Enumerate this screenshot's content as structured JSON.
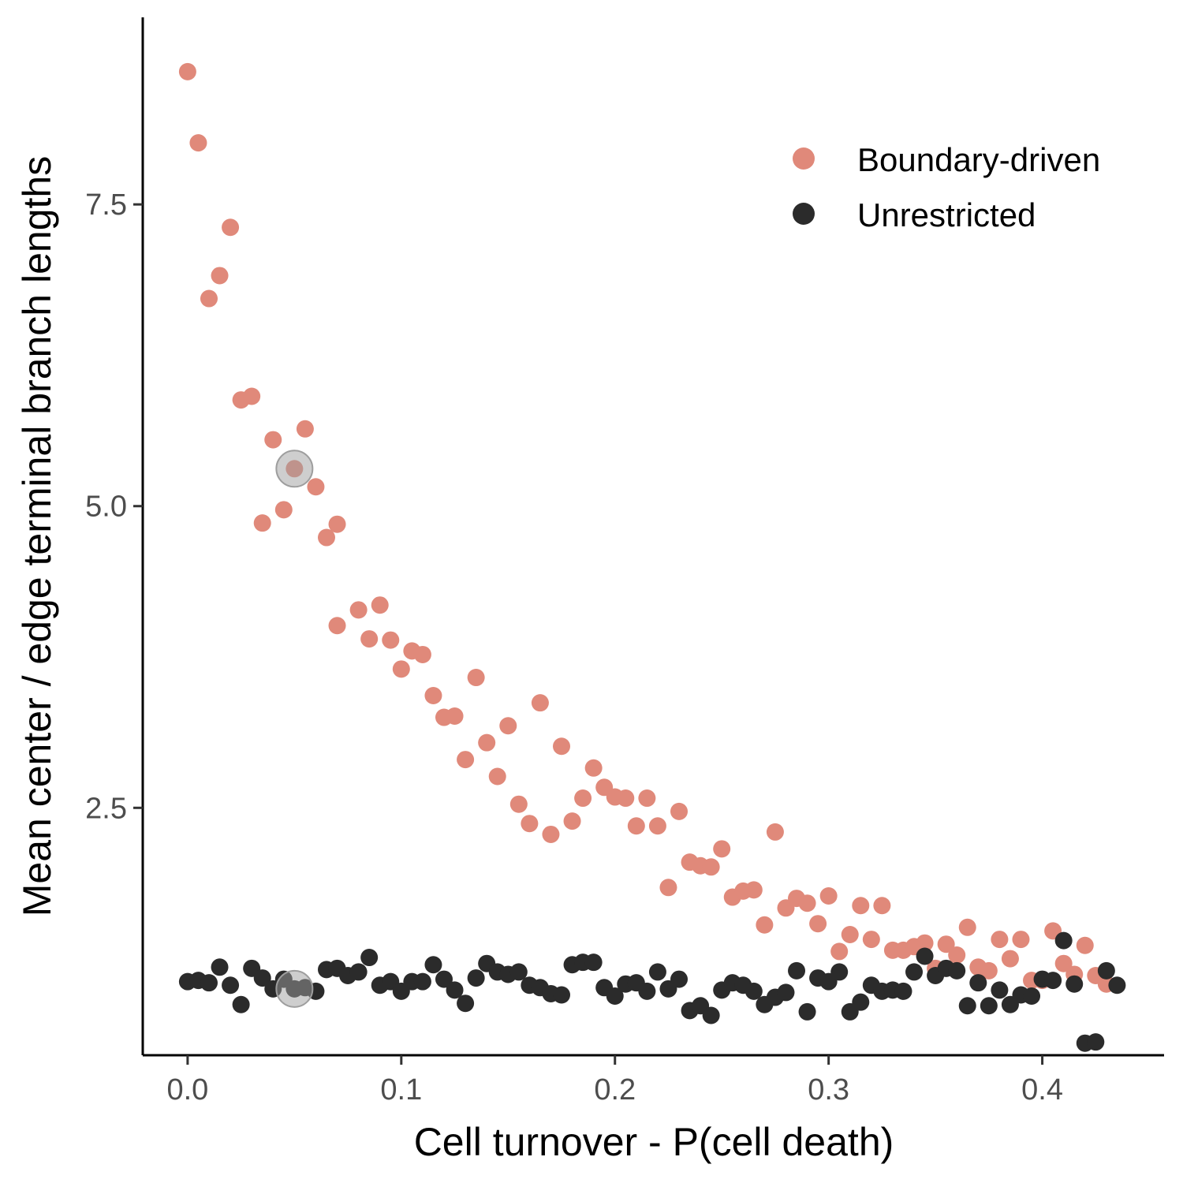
{
  "chart_data": {
    "type": "scatter",
    "title": "",
    "xlabel": "Cell turnover - P(cell death)",
    "ylabel": "Mean center / edge terminal branch lengths",
    "xlim": [
      -0.021,
      0.457
    ],
    "ylim": [
      0.45,
      9.05
    ],
    "x_ticks": [
      0.0,
      0.1,
      0.2,
      0.3,
      0.4
    ],
    "x_tick_labels": [
      "0.0",
      "0.1",
      "0.2",
      "0.3",
      "0.4"
    ],
    "y_ticks": [
      2.5,
      5.0,
      7.5
    ],
    "y_tick_labels": [
      "2.5",
      "5.0",
      "7.5"
    ],
    "grid": false,
    "legend_position": "top-right",
    "series": [
      {
        "name": "Boundary-driven",
        "color": "#E0897A",
        "points": [
          [
            0.0,
            8.6
          ],
          [
            0.005,
            8.01
          ],
          [
            0.01,
            6.72
          ],
          [
            0.015,
            6.91
          ],
          [
            0.02,
            7.31
          ],
          [
            0.025,
            5.88
          ],
          [
            0.03,
            5.91
          ],
          [
            0.035,
            4.86
          ],
          [
            0.04,
            5.55
          ],
          [
            0.045,
            4.97
          ],
          [
            0.05,
            5.31
          ],
          [
            0.055,
            5.64
          ],
          [
            0.06,
            5.16
          ],
          [
            0.065,
            4.74
          ],
          [
            0.07,
            4.85
          ],
          [
            0.07,
            4.01
          ],
          [
            0.08,
            4.14
          ],
          [
            0.085,
            3.9
          ],
          [
            0.09,
            4.18
          ],
          [
            0.095,
            3.89
          ],
          [
            0.1,
            3.65
          ],
          [
            0.105,
            3.8
          ],
          [
            0.11,
            3.77
          ],
          [
            0.115,
            3.43
          ],
          [
            0.12,
            3.25
          ],
          [
            0.125,
            3.26
          ],
          [
            0.13,
            2.9
          ],
          [
            0.135,
            3.58
          ],
          [
            0.14,
            3.04
          ],
          [
            0.145,
            2.76
          ],
          [
            0.15,
            3.18
          ],
          [
            0.155,
            2.53
          ],
          [
            0.16,
            2.37
          ],
          [
            0.165,
            3.37
          ],
          [
            0.17,
            2.28
          ],
          [
            0.175,
            3.01
          ],
          [
            0.18,
            2.39
          ],
          [
            0.185,
            2.58
          ],
          [
            0.19,
            2.83
          ],
          [
            0.195,
            2.67
          ],
          [
            0.2,
            2.59
          ],
          [
            0.205,
            2.58
          ],
          [
            0.21,
            2.35
          ],
          [
            0.215,
            2.58
          ],
          [
            0.22,
            2.35
          ],
          [
            0.225,
            1.84
          ],
          [
            0.23,
            2.47
          ],
          [
            0.235,
            2.05
          ],
          [
            0.24,
            2.02
          ],
          [
            0.245,
            2.01
          ],
          [
            0.25,
            2.16
          ],
          [
            0.255,
            1.76
          ],
          [
            0.26,
            1.81
          ],
          [
            0.265,
            1.82
          ],
          [
            0.27,
            1.53
          ],
          [
            0.275,
            2.3
          ],
          [
            0.28,
            1.67
          ],
          [
            0.285,
            1.75
          ],
          [
            0.29,
            1.71
          ],
          [
            0.295,
            1.54
          ],
          [
            0.3,
            1.77
          ],
          [
            0.305,
            1.31
          ],
          [
            0.31,
            1.45
          ],
          [
            0.315,
            1.69
          ],
          [
            0.32,
            1.41
          ],
          [
            0.325,
            1.69
          ],
          [
            0.33,
            1.32
          ],
          [
            0.335,
            1.32
          ],
          [
            0.34,
            1.35
          ],
          [
            0.345,
            1.38
          ],
          [
            0.35,
            1.17
          ],
          [
            0.355,
            1.37
          ],
          [
            0.36,
            1.28
          ],
          [
            0.365,
            1.51
          ],
          [
            0.37,
            1.18
          ],
          [
            0.375,
            1.15
          ],
          [
            0.38,
            1.41
          ],
          [
            0.385,
            1.25
          ],
          [
            0.39,
            1.41
          ],
          [
            0.395,
            1.07
          ],
          [
            0.4,
            1.07
          ],
          [
            0.405,
            1.48
          ],
          [
            0.41,
            1.21
          ],
          [
            0.415,
            1.12
          ],
          [
            0.42,
            1.36
          ],
          [
            0.425,
            1.11
          ],
          [
            0.43,
            1.04
          ]
        ]
      },
      {
        "name": "Unrestricted",
        "color": "#2B2B2B",
        "points": [
          [
            0.0,
            1.06
          ],
          [
            0.005,
            1.07
          ],
          [
            0.01,
            1.05
          ],
          [
            0.015,
            1.18
          ],
          [
            0.02,
            1.03
          ],
          [
            0.025,
            0.87
          ],
          [
            0.03,
            1.17
          ],
          [
            0.035,
            1.09
          ],
          [
            0.04,
            1.0
          ],
          [
            0.045,
            1.08
          ],
          [
            0.05,
            1.0
          ],
          [
            0.055,
            1.01
          ],
          [
            0.06,
            0.98
          ],
          [
            0.065,
            1.16
          ],
          [
            0.07,
            1.17
          ],
          [
            0.075,
            1.11
          ],
          [
            0.08,
            1.14
          ],
          [
            0.085,
            1.26
          ],
          [
            0.09,
            1.03
          ],
          [
            0.095,
            1.06
          ],
          [
            0.1,
            0.98
          ],
          [
            0.105,
            1.06
          ],
          [
            0.11,
            1.06
          ],
          [
            0.115,
            1.2
          ],
          [
            0.12,
            1.08
          ],
          [
            0.125,
            0.99
          ],
          [
            0.13,
            0.88
          ],
          [
            0.135,
            1.09
          ],
          [
            0.14,
            1.21
          ],
          [
            0.145,
            1.14
          ],
          [
            0.15,
            1.12
          ],
          [
            0.155,
            1.14
          ],
          [
            0.16,
            1.03
          ],
          [
            0.165,
            1.01
          ],
          [
            0.17,
            0.96
          ],
          [
            0.175,
            0.95
          ],
          [
            0.18,
            1.2
          ],
          [
            0.185,
            1.22
          ],
          [
            0.19,
            1.22
          ],
          [
            0.195,
            1.01
          ],
          [
            0.2,
            0.94
          ],
          [
            0.205,
            1.04
          ],
          [
            0.21,
            1.05
          ],
          [
            0.215,
            0.98
          ],
          [
            0.22,
            1.14
          ],
          [
            0.225,
            1.0
          ],
          [
            0.23,
            1.08
          ],
          [
            0.235,
            0.82
          ],
          [
            0.24,
            0.86
          ],
          [
            0.245,
            0.78
          ],
          [
            0.25,
            0.99
          ],
          [
            0.255,
            1.05
          ],
          [
            0.26,
            1.03
          ],
          [
            0.265,
            0.98
          ],
          [
            0.27,
            0.87
          ],
          [
            0.275,
            0.93
          ],
          [
            0.28,
            0.97
          ],
          [
            0.285,
            1.15
          ],
          [
            0.29,
            0.81
          ],
          [
            0.295,
            1.09
          ],
          [
            0.3,
            1.06
          ],
          [
            0.305,
            1.14
          ],
          [
            0.31,
            0.81
          ],
          [
            0.315,
            0.89
          ],
          [
            0.32,
            1.03
          ],
          [
            0.325,
            0.98
          ],
          [
            0.33,
            0.99
          ],
          [
            0.335,
            0.98
          ],
          [
            0.34,
            1.14
          ],
          [
            0.345,
            1.27
          ],
          [
            0.35,
            1.11
          ],
          [
            0.355,
            1.17
          ],
          [
            0.36,
            1.15
          ],
          [
            0.365,
            0.86
          ],
          [
            0.37,
            1.05
          ],
          [
            0.375,
            0.86
          ],
          [
            0.38,
            0.99
          ],
          [
            0.385,
            0.87
          ],
          [
            0.39,
            0.95
          ],
          [
            0.395,
            0.94
          ],
          [
            0.4,
            1.08
          ],
          [
            0.405,
            1.07
          ],
          [
            0.41,
            1.4
          ],
          [
            0.415,
            1.04
          ],
          [
            0.42,
            0.55
          ],
          [
            0.425,
            0.56
          ],
          [
            0.43,
            1.15
          ],
          [
            0.435,
            1.03
          ]
        ]
      }
    ],
    "highlighted_points": [
      {
        "series": "Boundary-driven",
        "x": 0.05,
        "y": 5.31
      },
      {
        "series": "Unrestricted",
        "x": 0.05,
        "y": 1.0
      }
    ],
    "highlight_color": "#9E9E9E"
  }
}
